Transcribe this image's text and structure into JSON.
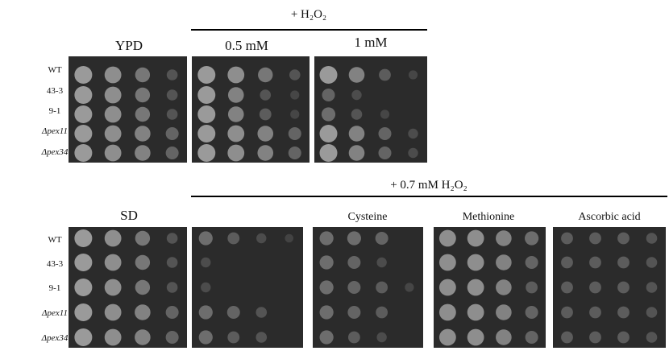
{
  "top": {
    "header": "+ H₂O₂",
    "conditions": [
      "YPD",
      "0.5 mM",
      "1 mM"
    ],
    "strains": [
      "WT",
      "43-3",
      "9-1",
      "Δpex11",
      "Δpex34"
    ]
  },
  "bottom": {
    "header": "+ 0.7 mM H₂O₂",
    "conditions": [
      "SD",
      "Cysteine",
      "Methionine",
      "Ascorbic acid"
    ],
    "strains": [
      "WT",
      "43-3",
      "9-1",
      "Δpex11",
      "Δpex34"
    ]
  }
}
